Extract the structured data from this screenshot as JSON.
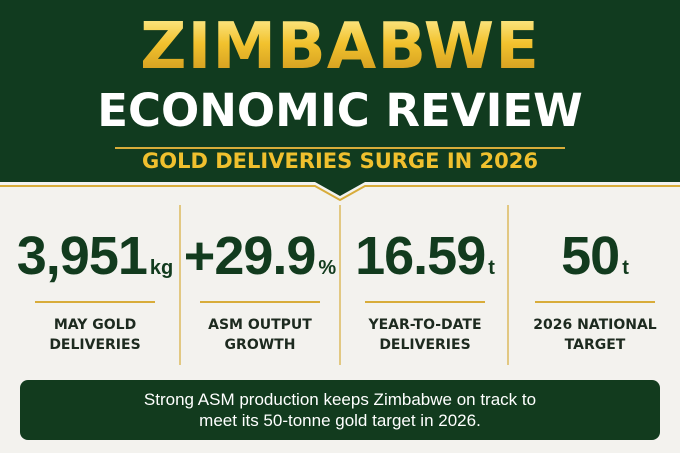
{
  "header": {
    "title": "ZIMBABWE",
    "subtitle": "ECONOMIC REVIEW",
    "tagline": "GOLD DELIVERIES SURGE IN 2026"
  },
  "stats": [
    {
      "value": "3,951",
      "unit": "kg",
      "label": "MAY GOLD DELIVERIES"
    },
    {
      "value": "+29.9",
      "unit": "%",
      "label": "ASM OUTPUT GROWTH"
    },
    {
      "value": "16.59",
      "unit": "t",
      "label": "YEAR-TO-DATE DELIVERIES"
    },
    {
      "value": "50",
      "unit": "t",
      "label": "2026 NATIONAL TARGET"
    }
  ],
  "footer": "Strong ASM production keeps Zimbabwe on track to meet its 50-tonne gold target in 2026."
}
